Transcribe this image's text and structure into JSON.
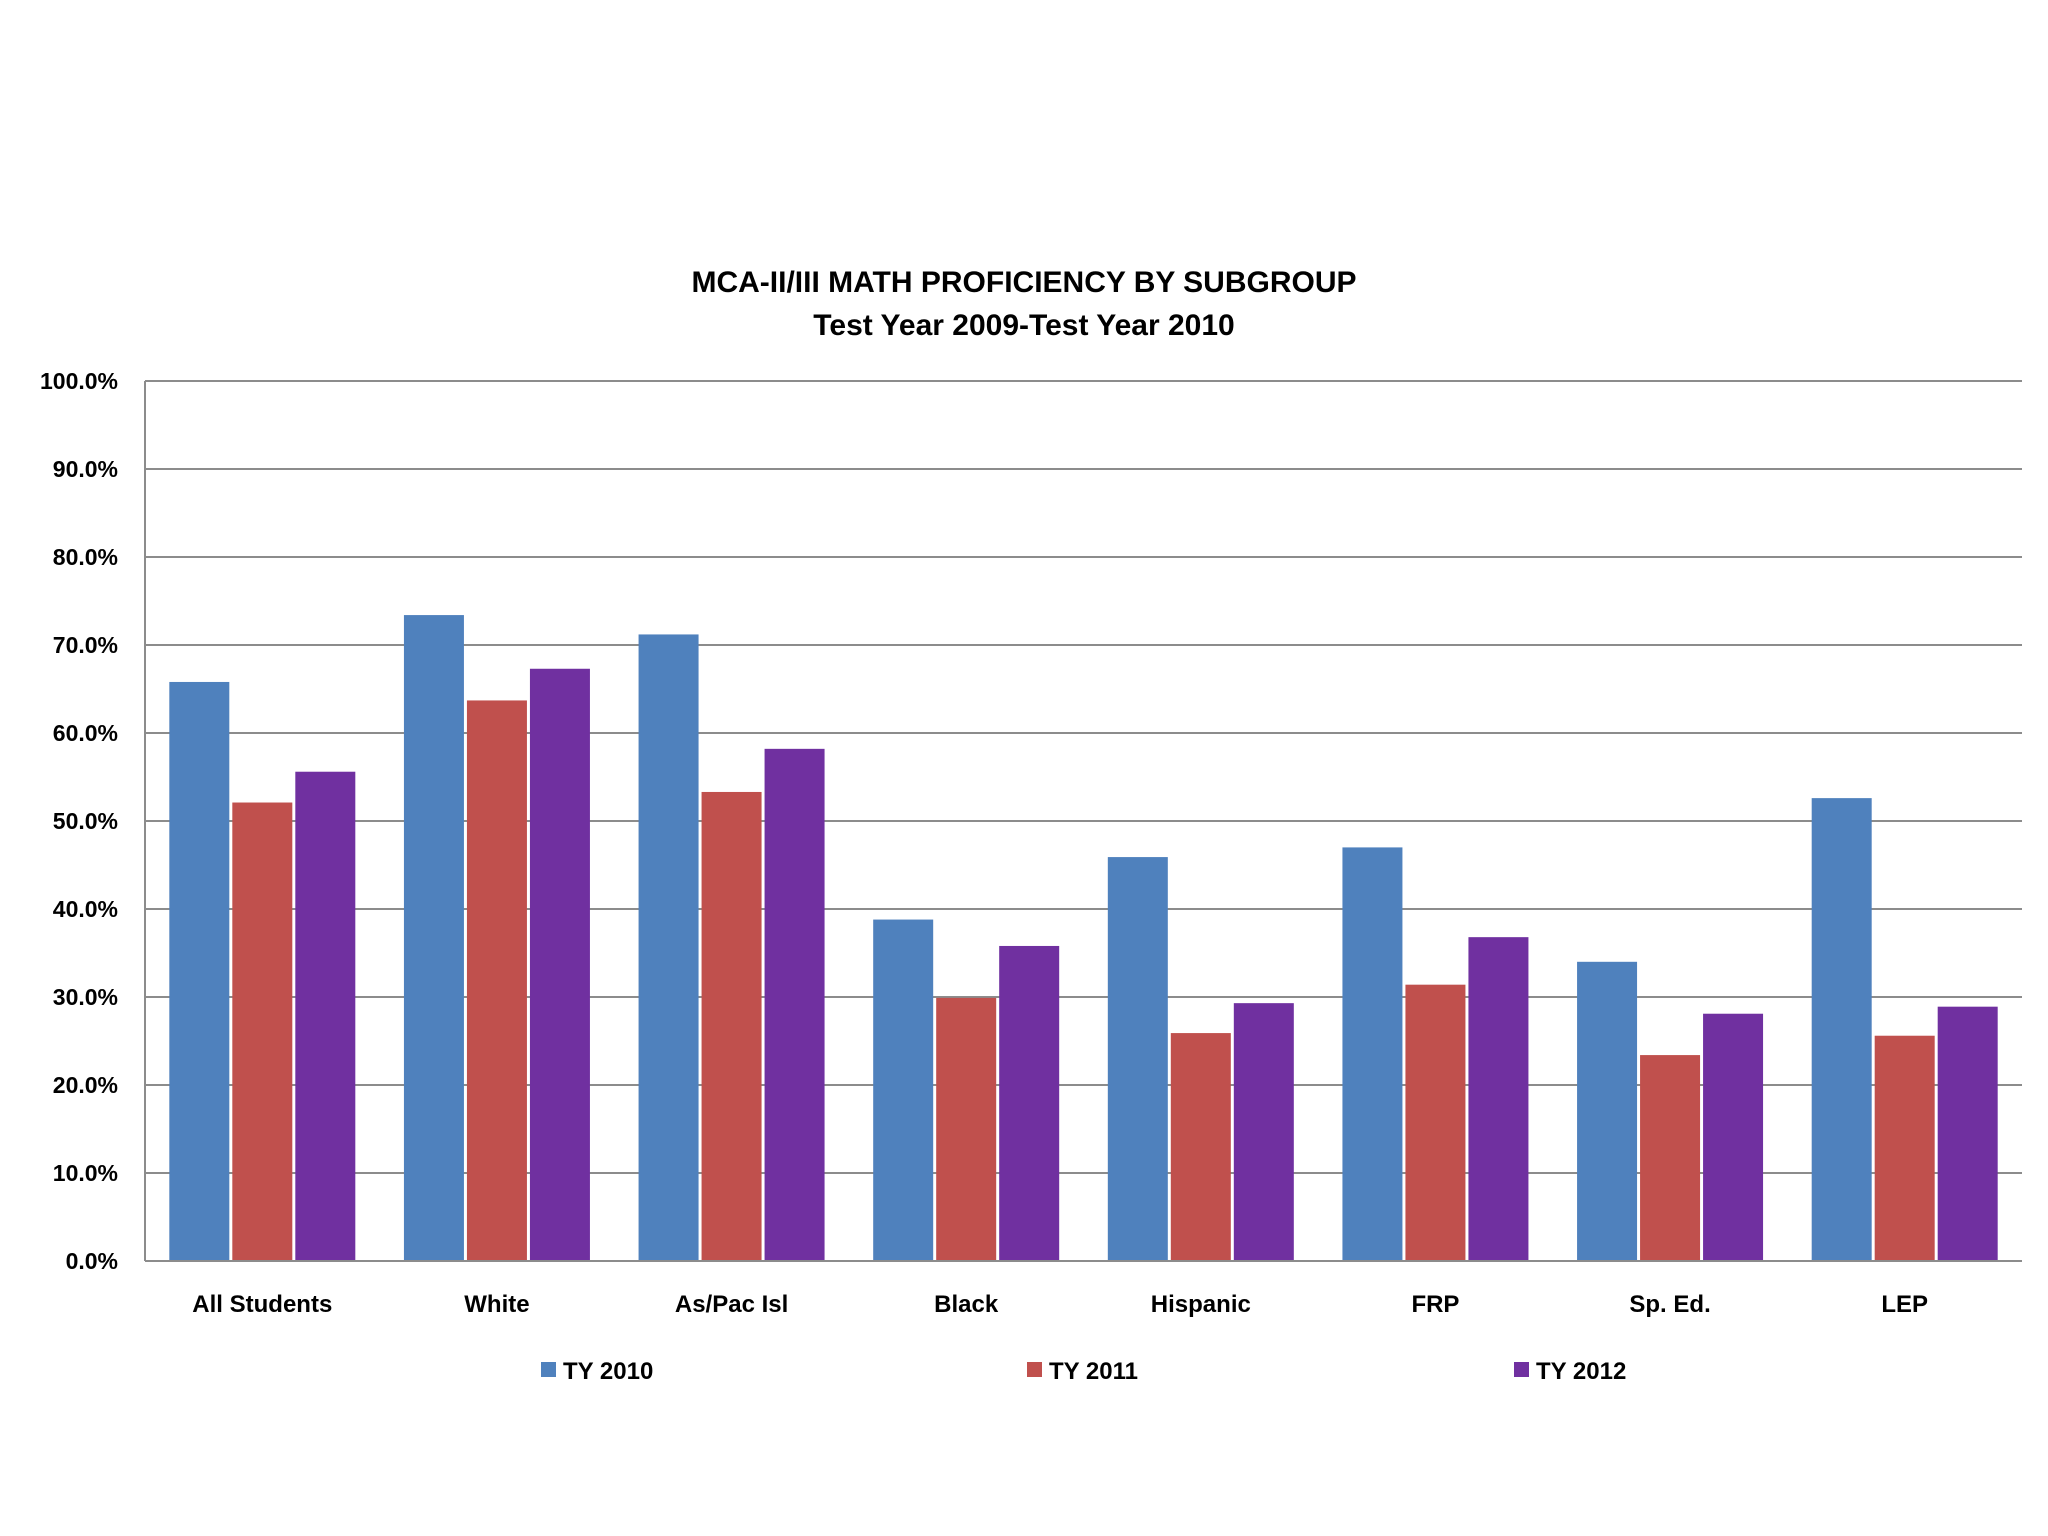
{
  "chart_data": {
    "type": "bar",
    "title": "MCA-II/III MATH PROFICIENCY BY SUBGROUP",
    "subtitle": "Test Year 2009-Test Year 2010",
    "xlabel": "",
    "ylabel": "",
    "ylim": [
      0,
      100
    ],
    "y_ticks": [
      "0.0%",
      "10.0%",
      "20.0%",
      "30.0%",
      "40.0%",
      "50.0%",
      "60.0%",
      "70.0%",
      "80.0%",
      "90.0%",
      "100.0%"
    ],
    "grid": true,
    "legend_position": "bottom",
    "categories": [
      "All Students",
      "White",
      "As/Pac Isl",
      "Black",
      "Hispanic",
      "FRP",
      "Sp. Ed.",
      "LEP"
    ],
    "series": [
      {
        "name": "TY 2010",
        "color": "#4F81BD",
        "values": [
          65.8,
          73.4,
          71.2,
          38.8,
          45.9,
          47.0,
          34.0,
          52.6
        ]
      },
      {
        "name": "TY 2011",
        "color": "#C0504D",
        "values": [
          52.1,
          63.7,
          53.3,
          29.9,
          25.9,
          31.4,
          23.4,
          25.6
        ]
      },
      {
        "name": "TY 2012",
        "color": "#7030A0",
        "values": [
          55.6,
          67.3,
          58.2,
          35.8,
          29.3,
          36.8,
          28.1,
          28.9
        ]
      }
    ],
    "colors": {
      "gridline": "#8c8c8c",
      "axis": "#8c8c8c",
      "background": "#ffffff"
    }
  }
}
